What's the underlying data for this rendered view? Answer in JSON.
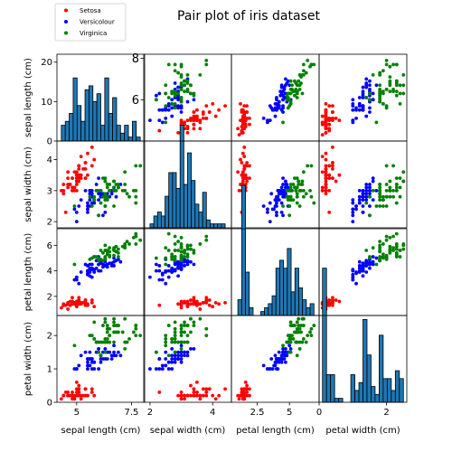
{
  "chart_data": {
    "type": "scatter",
    "title": "Pair plot of iris dataset",
    "variables": [
      "sepal length (cm)",
      "sepal width (cm)",
      "petal length (cm)",
      "petal width (cm)"
    ],
    "ranges": [
      [
        4.1,
        8.1
      ],
      [
        1.8,
        4.6
      ],
      [
        0.5,
        7.3
      ],
      [
        0.0,
        2.6
      ]
    ],
    "ticks": [
      [
        5.0,
        7.5
      ],
      [
        2,
        4
      ],
      [
        2.5,
        5.0
      ],
      [
        0,
        2
      ]
    ],
    "diag_yticks": [
      [
        0,
        10,
        20
      ],
      [
        2,
        3,
        4
      ],
      [
        2,
        4,
        6
      ],
      [
        0,
        1,
        2
      ]
    ],
    "offdiag_yticks": [
      [
        6,
        8
      ],
      [
        2,
        3,
        4
      ],
      [
        2,
        4,
        6
      ],
      [
        0,
        1,
        2
      ]
    ],
    "offdiag_ylim": [
      [
        4.0,
        8.2
      ],
      [
        1.8,
        4.6
      ],
      [
        0.5,
        7.3
      ],
      [
        0.0,
        2.6
      ]
    ],
    "histogram_ylim": [
      0,
      22
    ],
    "histogram_bins": 20,
    "legend": {
      "placement": "top-left",
      "entries": [
        "Setosa",
        "Versicolour",
        "Virginica"
      ]
    },
    "colors": {
      "Setosa": "#ff0000",
      "Versicolour": "#0000ff",
      "Virginica": "#008000",
      "bar": "#1f77b4"
    },
    "series": [
      {
        "name": "Setosa",
        "points": [
          [
            5.1,
            3.5,
            1.4,
            0.2
          ],
          [
            4.9,
            3.0,
            1.4,
            0.2
          ],
          [
            4.7,
            3.2,
            1.3,
            0.2
          ],
          [
            4.6,
            3.1,
            1.5,
            0.2
          ],
          [
            5.0,
            3.6,
            1.4,
            0.2
          ],
          [
            5.4,
            3.9,
            1.7,
            0.4
          ],
          [
            4.6,
            3.4,
            1.4,
            0.3
          ],
          [
            5.0,
            3.4,
            1.5,
            0.2
          ],
          [
            4.4,
            2.9,
            1.4,
            0.2
          ],
          [
            4.9,
            3.1,
            1.5,
            0.1
          ],
          [
            5.4,
            3.7,
            1.5,
            0.2
          ],
          [
            4.8,
            3.4,
            1.6,
            0.2
          ],
          [
            4.8,
            3.0,
            1.4,
            0.1
          ],
          [
            4.3,
            3.0,
            1.1,
            0.1
          ],
          [
            5.8,
            4.0,
            1.2,
            0.2
          ],
          [
            5.7,
            4.4,
            1.5,
            0.4
          ],
          [
            5.4,
            3.9,
            1.3,
            0.4
          ],
          [
            5.1,
            3.5,
            1.4,
            0.3
          ],
          [
            5.7,
            3.8,
            1.7,
            0.3
          ],
          [
            5.1,
            3.8,
            1.5,
            0.3
          ],
          [
            5.4,
            3.4,
            1.7,
            0.2
          ],
          [
            5.1,
            3.7,
            1.5,
            0.4
          ],
          [
            4.6,
            3.6,
            1.0,
            0.2
          ],
          [
            5.1,
            3.3,
            1.7,
            0.5
          ],
          [
            4.8,
            3.4,
            1.9,
            0.2
          ],
          [
            5.0,
            3.0,
            1.6,
            0.2
          ],
          [
            5.0,
            3.4,
            1.6,
            0.4
          ],
          [
            5.2,
            3.5,
            1.5,
            0.2
          ],
          [
            5.2,
            3.4,
            1.4,
            0.2
          ],
          [
            4.7,
            3.2,
            1.6,
            0.2
          ],
          [
            4.8,
            3.1,
            1.6,
            0.2
          ],
          [
            5.4,
            3.4,
            1.5,
            0.4
          ],
          [
            5.2,
            4.1,
            1.5,
            0.1
          ],
          [
            5.5,
            4.2,
            1.4,
            0.2
          ],
          [
            4.9,
            3.1,
            1.5,
            0.2
          ],
          [
            5.0,
            3.2,
            1.2,
            0.2
          ],
          [
            5.5,
            3.5,
            1.3,
            0.2
          ],
          [
            4.9,
            3.6,
            1.4,
            0.1
          ],
          [
            4.4,
            3.0,
            1.3,
            0.2
          ],
          [
            5.1,
            3.4,
            1.5,
            0.2
          ],
          [
            5.0,
            3.5,
            1.3,
            0.3
          ],
          [
            4.5,
            2.3,
            1.3,
            0.3
          ],
          [
            4.4,
            3.2,
            1.3,
            0.2
          ],
          [
            5.0,
            3.5,
            1.6,
            0.6
          ],
          [
            5.1,
            3.8,
            1.9,
            0.4
          ],
          [
            4.8,
            3.0,
            1.4,
            0.3
          ],
          [
            5.1,
            3.8,
            1.6,
            0.2
          ],
          [
            4.6,
            3.2,
            1.4,
            0.2
          ],
          [
            5.3,
            3.7,
            1.5,
            0.2
          ],
          [
            5.0,
            3.3,
            1.4,
            0.2
          ]
        ]
      },
      {
        "name": "Versicolour",
        "points": [
          [
            7.0,
            3.2,
            4.7,
            1.4
          ],
          [
            6.4,
            3.2,
            4.5,
            1.5
          ],
          [
            6.9,
            3.1,
            4.9,
            1.5
          ],
          [
            5.5,
            2.3,
            4.0,
            1.3
          ],
          [
            6.5,
            2.8,
            4.6,
            1.5
          ],
          [
            5.7,
            2.8,
            4.5,
            1.3
          ],
          [
            6.3,
            3.3,
            4.7,
            1.6
          ],
          [
            4.9,
            2.4,
            3.3,
            1.0
          ],
          [
            6.6,
            2.9,
            4.6,
            1.3
          ],
          [
            5.2,
            2.7,
            3.9,
            1.4
          ],
          [
            5.0,
            2.0,
            3.5,
            1.0
          ],
          [
            5.9,
            3.0,
            4.2,
            1.5
          ],
          [
            6.0,
            2.2,
            4.0,
            1.0
          ],
          [
            6.1,
            2.9,
            4.7,
            1.4
          ],
          [
            5.6,
            2.9,
            3.6,
            1.3
          ],
          [
            6.7,
            3.1,
            4.4,
            1.4
          ],
          [
            5.6,
            3.0,
            4.5,
            1.5
          ],
          [
            5.8,
            2.7,
            4.1,
            1.0
          ],
          [
            6.2,
            2.2,
            4.5,
            1.5
          ],
          [
            5.6,
            2.5,
            3.9,
            1.1
          ],
          [
            5.9,
            3.2,
            4.8,
            1.8
          ],
          [
            6.1,
            2.8,
            4.0,
            1.3
          ],
          [
            6.3,
            2.5,
            4.9,
            1.5
          ],
          [
            6.1,
            2.8,
            4.7,
            1.2
          ],
          [
            6.4,
            2.9,
            4.3,
            1.3
          ],
          [
            6.6,
            3.0,
            4.4,
            1.4
          ],
          [
            6.8,
            2.8,
            4.8,
            1.4
          ],
          [
            6.7,
            3.0,
            5.0,
            1.7
          ],
          [
            6.0,
            2.9,
            4.5,
            1.5
          ],
          [
            5.7,
            2.6,
            3.5,
            1.0
          ],
          [
            5.5,
            2.4,
            3.8,
            1.1
          ],
          [
            5.5,
            2.4,
            3.7,
            1.0
          ],
          [
            5.8,
            2.7,
            3.9,
            1.2
          ],
          [
            6.0,
            2.7,
            5.1,
            1.6
          ],
          [
            5.4,
            3.0,
            4.5,
            1.5
          ],
          [
            6.0,
            3.4,
            4.5,
            1.6
          ],
          [
            6.7,
            3.1,
            4.7,
            1.5
          ],
          [
            6.3,
            2.3,
            4.4,
            1.3
          ],
          [
            5.6,
            3.0,
            4.1,
            1.3
          ],
          [
            5.5,
            2.5,
            4.0,
            1.3
          ],
          [
            5.5,
            2.6,
            4.4,
            1.2
          ],
          [
            6.1,
            3.0,
            4.6,
            1.4
          ],
          [
            5.8,
            2.6,
            4.0,
            1.2
          ],
          [
            5.0,
            2.3,
            3.3,
            1.0
          ],
          [
            5.6,
            2.7,
            4.2,
            1.3
          ],
          [
            5.7,
            3.0,
            4.2,
            1.2
          ],
          [
            5.7,
            2.9,
            4.2,
            1.3
          ],
          [
            6.2,
            2.9,
            4.3,
            1.3
          ],
          [
            5.1,
            2.5,
            3.0,
            1.1
          ],
          [
            5.7,
            2.8,
            4.1,
            1.3
          ]
        ]
      },
      {
        "name": "Virginica",
        "points": [
          [
            6.3,
            3.3,
            6.0,
            2.5
          ],
          [
            5.8,
            2.7,
            5.1,
            1.9
          ],
          [
            7.1,
            3.0,
            5.9,
            2.1
          ],
          [
            6.3,
            2.9,
            5.6,
            1.8
          ],
          [
            6.5,
            3.0,
            5.8,
            2.2
          ],
          [
            7.6,
            3.0,
            6.6,
            2.1
          ],
          [
            4.9,
            2.5,
            4.5,
            1.7
          ],
          [
            7.3,
            2.9,
            6.3,
            1.8
          ],
          [
            6.7,
            2.5,
            5.8,
            1.8
          ],
          [
            7.2,
            3.6,
            6.1,
            2.5
          ],
          [
            6.5,
            3.2,
            5.1,
            2.0
          ],
          [
            6.4,
            2.7,
            5.3,
            1.9
          ],
          [
            6.8,
            3.0,
            5.5,
            2.1
          ],
          [
            5.7,
            2.5,
            5.0,
            2.0
          ],
          [
            5.8,
            2.8,
            5.1,
            2.4
          ],
          [
            6.4,
            3.2,
            5.3,
            2.3
          ],
          [
            6.5,
            3.0,
            5.5,
            1.8
          ],
          [
            7.7,
            3.8,
            6.7,
            2.2
          ],
          [
            7.7,
            2.6,
            6.9,
            2.3
          ],
          [
            6.0,
            2.2,
            5.0,
            1.5
          ],
          [
            6.9,
            3.2,
            5.7,
            2.3
          ],
          [
            5.6,
            2.8,
            4.9,
            2.0
          ],
          [
            7.7,
            2.8,
            6.7,
            2.0
          ],
          [
            6.3,
            2.7,
            4.9,
            1.8
          ],
          [
            6.7,
            3.3,
            5.7,
            2.1
          ],
          [
            7.2,
            3.2,
            6.0,
            1.8
          ],
          [
            6.2,
            2.8,
            4.8,
            1.8
          ],
          [
            6.1,
            3.0,
            4.9,
            1.8
          ],
          [
            6.4,
            2.8,
            5.6,
            2.1
          ],
          [
            7.2,
            3.0,
            5.8,
            1.6
          ],
          [
            7.4,
            2.8,
            6.1,
            1.9
          ],
          [
            7.9,
            3.8,
            6.4,
            2.0
          ],
          [
            6.4,
            2.8,
            5.6,
            2.2
          ],
          [
            6.3,
            2.8,
            5.1,
            1.5
          ],
          [
            6.1,
            2.6,
            5.6,
            1.4
          ],
          [
            7.7,
            3.0,
            6.1,
            2.3
          ],
          [
            6.3,
            3.4,
            5.6,
            2.4
          ],
          [
            6.4,
            3.1,
            5.5,
            1.8
          ],
          [
            6.0,
            3.0,
            4.8,
            1.8
          ],
          [
            6.9,
            3.1,
            5.4,
            2.1
          ],
          [
            6.7,
            3.1,
            5.6,
            2.4
          ],
          [
            6.9,
            3.1,
            5.1,
            2.3
          ],
          [
            5.8,
            2.7,
            5.1,
            1.9
          ],
          [
            6.8,
            3.2,
            5.9,
            2.3
          ],
          [
            6.7,
            3.3,
            5.7,
            2.5
          ],
          [
            6.7,
            3.0,
            5.2,
            2.3
          ],
          [
            6.3,
            2.5,
            5.0,
            1.9
          ],
          [
            6.5,
            3.0,
            5.2,
            2.0
          ],
          [
            6.2,
            3.4,
            5.4,
            2.3
          ],
          [
            5.9,
            3.0,
            5.1,
            1.8
          ]
        ]
      }
    ]
  }
}
